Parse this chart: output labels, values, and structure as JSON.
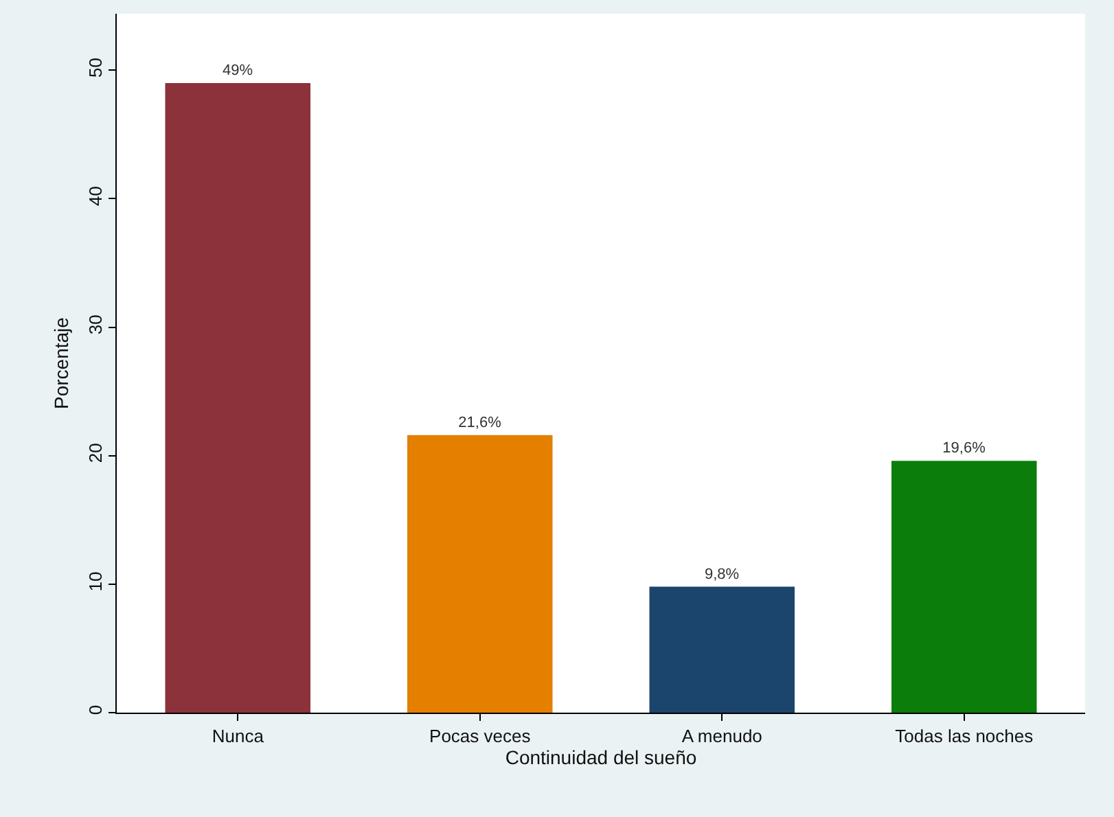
{
  "chart_data": {
    "type": "bar",
    "xlabel": "Continuidad del sueño",
    "ylabel": "Porcentaje",
    "categories": [
      "Nunca",
      "Pocas veces",
      "A menudo",
      "Todas las noches"
    ],
    "values": [
      49,
      21.6,
      9.8,
      19.6
    ],
    "colors": [
      "#8b323a",
      "#e47f00",
      "#1b456c",
      "#0a7d0a"
    ],
    "value_labels": [
      "49%",
      "21,6%",
      "9,8%",
      "19,6%"
    ],
    "ylim": [
      0,
      54.4
    ],
    "yticks": [
      0,
      10,
      20,
      30,
      40,
      50
    ]
  }
}
